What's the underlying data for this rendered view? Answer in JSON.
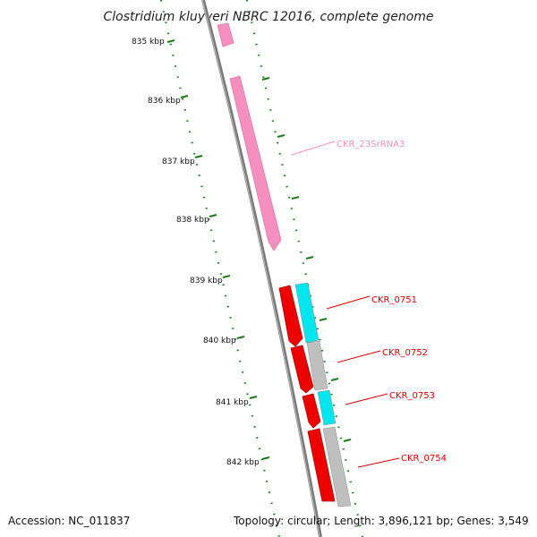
{
  "title": "Clostridium kluyveri NBRC 12016, complete genome",
  "accession_label": "Accession: NC_011837",
  "summary_label": "Topology: circular; Length: 3,896,121 bp; Genes: 3,549",
  "ticks": [
    "835 kbp",
    "836 kbp",
    "837 kbp",
    "838 kbp",
    "839 kbp",
    "840 kbp",
    "841 kbp",
    "842 kbp"
  ],
  "genes": [
    {
      "name": "CKR_23SrRNA3",
      "type": "rRNA",
      "color": "#f48fbf"
    },
    {
      "name": "CKR_0751",
      "type": "CDS",
      "color": "#ee0000",
      "product_color": "#00e5ee"
    },
    {
      "name": "CKR_0752",
      "type": "CDS",
      "color": "#ee0000",
      "product_color": "#bfbfbf"
    },
    {
      "name": "CKR_0753",
      "type": "CDS",
      "color": "#ee0000",
      "product_color": "#00e5ee"
    },
    {
      "name": "CKR_0754",
      "type": "CDS",
      "color": "#ee0000",
      "product_color": "#bfbfbf"
    }
  ],
  "colors": {
    "backbone": "#7a7a7a",
    "tick_dots": "#1a7a1a",
    "rrna": "#f48fbf",
    "cds": "#ee0000",
    "cds_label": "#dd0000",
    "cyan": "#00e5ee",
    "grey": "#bfbfbf"
  }
}
